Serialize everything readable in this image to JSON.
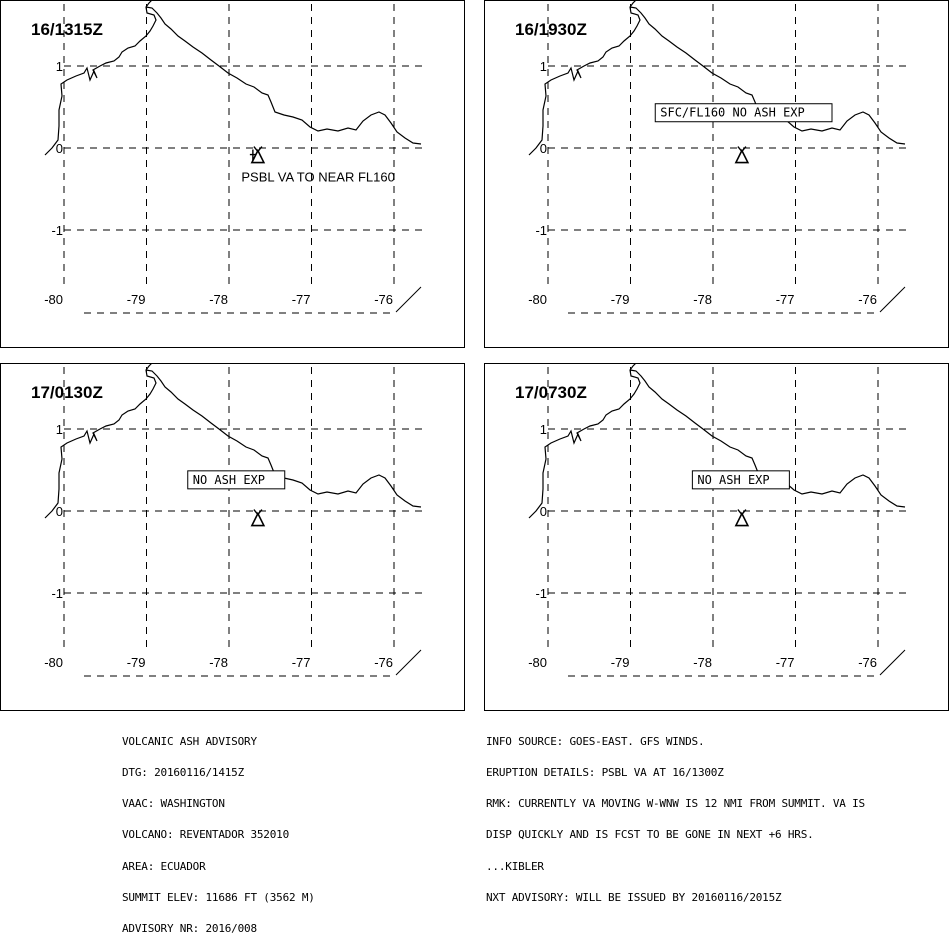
{
  "panels": [
    {
      "time": "16/1315Z",
      "note": "PSBL VA TO NEAR FL160",
      "note_boxed": false,
      "note_lon": -77.85,
      "note_lat": -0.35
    },
    {
      "time": "16/1930Z",
      "note": "SFC/FL160  NO  ASH  EXP",
      "note_boxed": true,
      "note_lon": -78.7,
      "note_lat": 0.43
    },
    {
      "time": "17/0130Z",
      "note": "NO  ASH  EXP",
      "note_boxed": true,
      "note_lon": -78.5,
      "note_lat": 0.38
    },
    {
      "time": "17/0730Z",
      "note": "NO  ASH  EXP",
      "note_boxed": true,
      "note_lon": -78.25,
      "note_lat": 0.38
    }
  ],
  "map": {
    "lon_ticks": [
      "-80",
      "-79",
      "-78",
      "-77",
      "-76"
    ],
    "lat_ticks": [
      "1",
      "0",
      "-1"
    ],
    "volcano_lon": -77.65,
    "volcano_lat": -0.08
  },
  "advisory_left": [
    "VOLCANIC ASH ADVISORY",
    "DTG: 20160116/1415Z",
    "VAAC: WASHINGTON",
    "VOLCANO: REVENTADOR 352010",
    "AREA: ECUADOR",
    "SUMMIT ELEV: 11686 FT (3562 M)",
    "ADVISORY NR: 2016/008"
  ],
  "advisory_right": [
    "INFO SOURCE: GOES-EAST. GFS WINDS.",
    "ERUPTION DETAILS: PSBL VA AT 16/1300Z",
    "RMK: CURRENTLY VA MOVING W-WNW IS 12 NMI FROM SUMMIT. VA IS",
    "DISP QUICKLY AND IS FCST TO BE GONE IN NEXT +6 HRS.",
    "...KIBLER",
    "NXT ADVISORY: WILL BE ISSUED BY 20160116/2015Z"
  ]
}
